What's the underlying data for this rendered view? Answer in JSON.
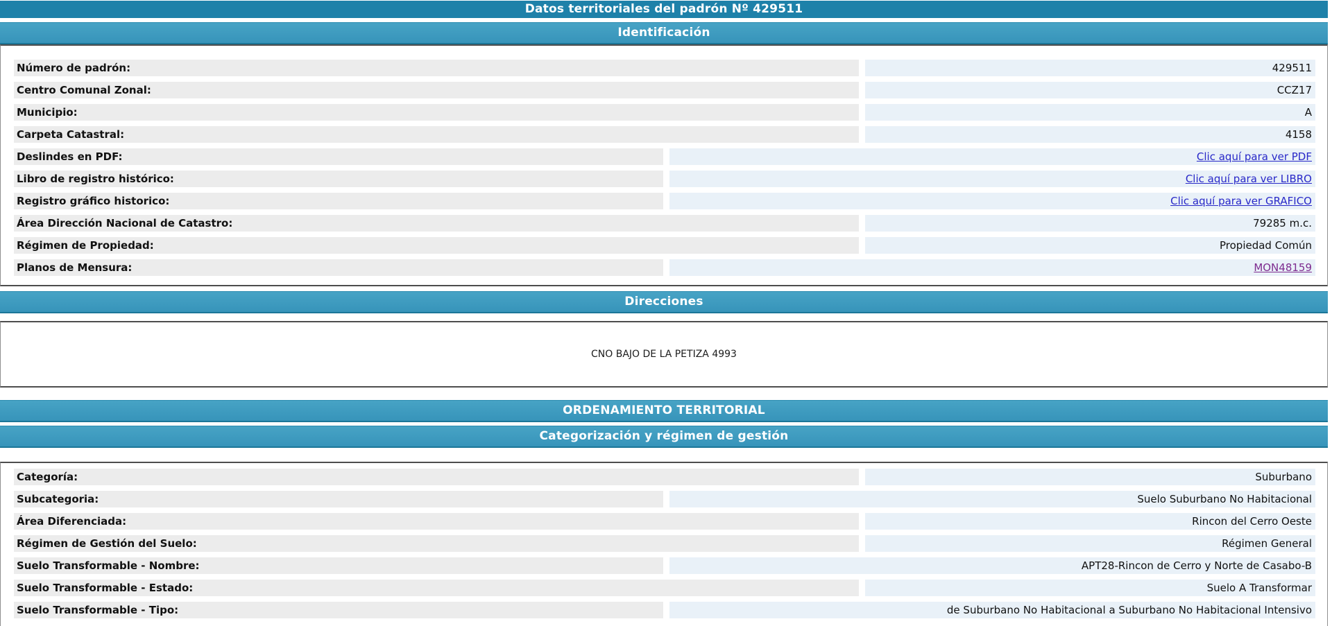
{
  "page": {
    "title": "Datos territoriales del padrón Nº 429511"
  },
  "colors": {
    "title_bar": "#1e81a9",
    "section_bar": "#3f9cc0",
    "label_bg": "#ececec",
    "value_bg": "#e9f1f8",
    "link": "#2828c8",
    "link_visited": "#7d2b8f"
  },
  "sections": {
    "identificacion": {
      "title": "Identificación",
      "rows": [
        {
          "label": "Número de padrón:",
          "value": "429511",
          "type": "text",
          "label_width": "wide"
        },
        {
          "label": "Centro Comunal Zonal:",
          "value": "CCZ17",
          "type": "text",
          "label_width": "wide"
        },
        {
          "label": "Municipio:",
          "value": "A",
          "type": "text",
          "label_width": "wide"
        },
        {
          "label": "Carpeta Catastral:",
          "value": "4158",
          "type": "text",
          "label_width": "wide"
        },
        {
          "label": "Deslindes en PDF:",
          "value": "Clic aquí para ver PDF",
          "type": "link",
          "label_width": "narrow"
        },
        {
          "label": "Libro de registro histórico:",
          "value": "Clic aquí para ver LIBRO",
          "type": "link",
          "label_width": "narrow"
        },
        {
          "label": "Registro gráfico historico:",
          "value": "Clic aquí para ver GRAFICO",
          "type": "link",
          "label_width": "narrow"
        },
        {
          "label": "Área Dirección Nacional de Catastro:",
          "value": "79285 m.c.",
          "type": "text",
          "label_width": "wide"
        },
        {
          "label": "Régimen de Propiedad:",
          "value": "Propiedad Común",
          "type": "text",
          "label_width": "wide"
        },
        {
          "label": "Planos de Mensura:",
          "value": "MON48159",
          "type": "visited_link",
          "label_width": "narrow"
        }
      ]
    },
    "direcciones": {
      "title": "Direcciones",
      "address": "CNO BAJO DE LA PETIZA 4993"
    },
    "ordenamiento": {
      "title": "ORDENAMIENTO TERRITORIAL"
    },
    "categorizacion": {
      "title": "Categorización y régimen de gestión",
      "rows": [
        {
          "label": "Categoría:",
          "value": "Suburbano",
          "type": "text",
          "label_width": "wide"
        },
        {
          "label": "Subcategoria:",
          "value": "Suelo Suburbano No Habitacional",
          "type": "text",
          "label_width": "narrow"
        },
        {
          "label": "Área Diferenciada:",
          "value": "Rincon del Cerro Oeste",
          "type": "text",
          "label_width": "wide"
        },
        {
          "label": "Régimen de Gestión del Suelo:",
          "value": "Régimen General",
          "type": "text",
          "label_width": "wide"
        },
        {
          "label": "Suelo Transformable - Nombre:",
          "value": "APT28-Rincon de Cerro y Norte de Casabo-B",
          "type": "text",
          "label_width": "narrow"
        },
        {
          "label": "Suelo Transformable - Estado:",
          "value": "Suelo A Transformar",
          "type": "text",
          "label_width": "wide"
        },
        {
          "label": "Suelo Transformable - Tipo:",
          "value": "de Suburbano No Habitacional a Suburbano No Habitacional Intensivo",
          "type": "text",
          "label_width": "narrow"
        }
      ]
    }
  }
}
